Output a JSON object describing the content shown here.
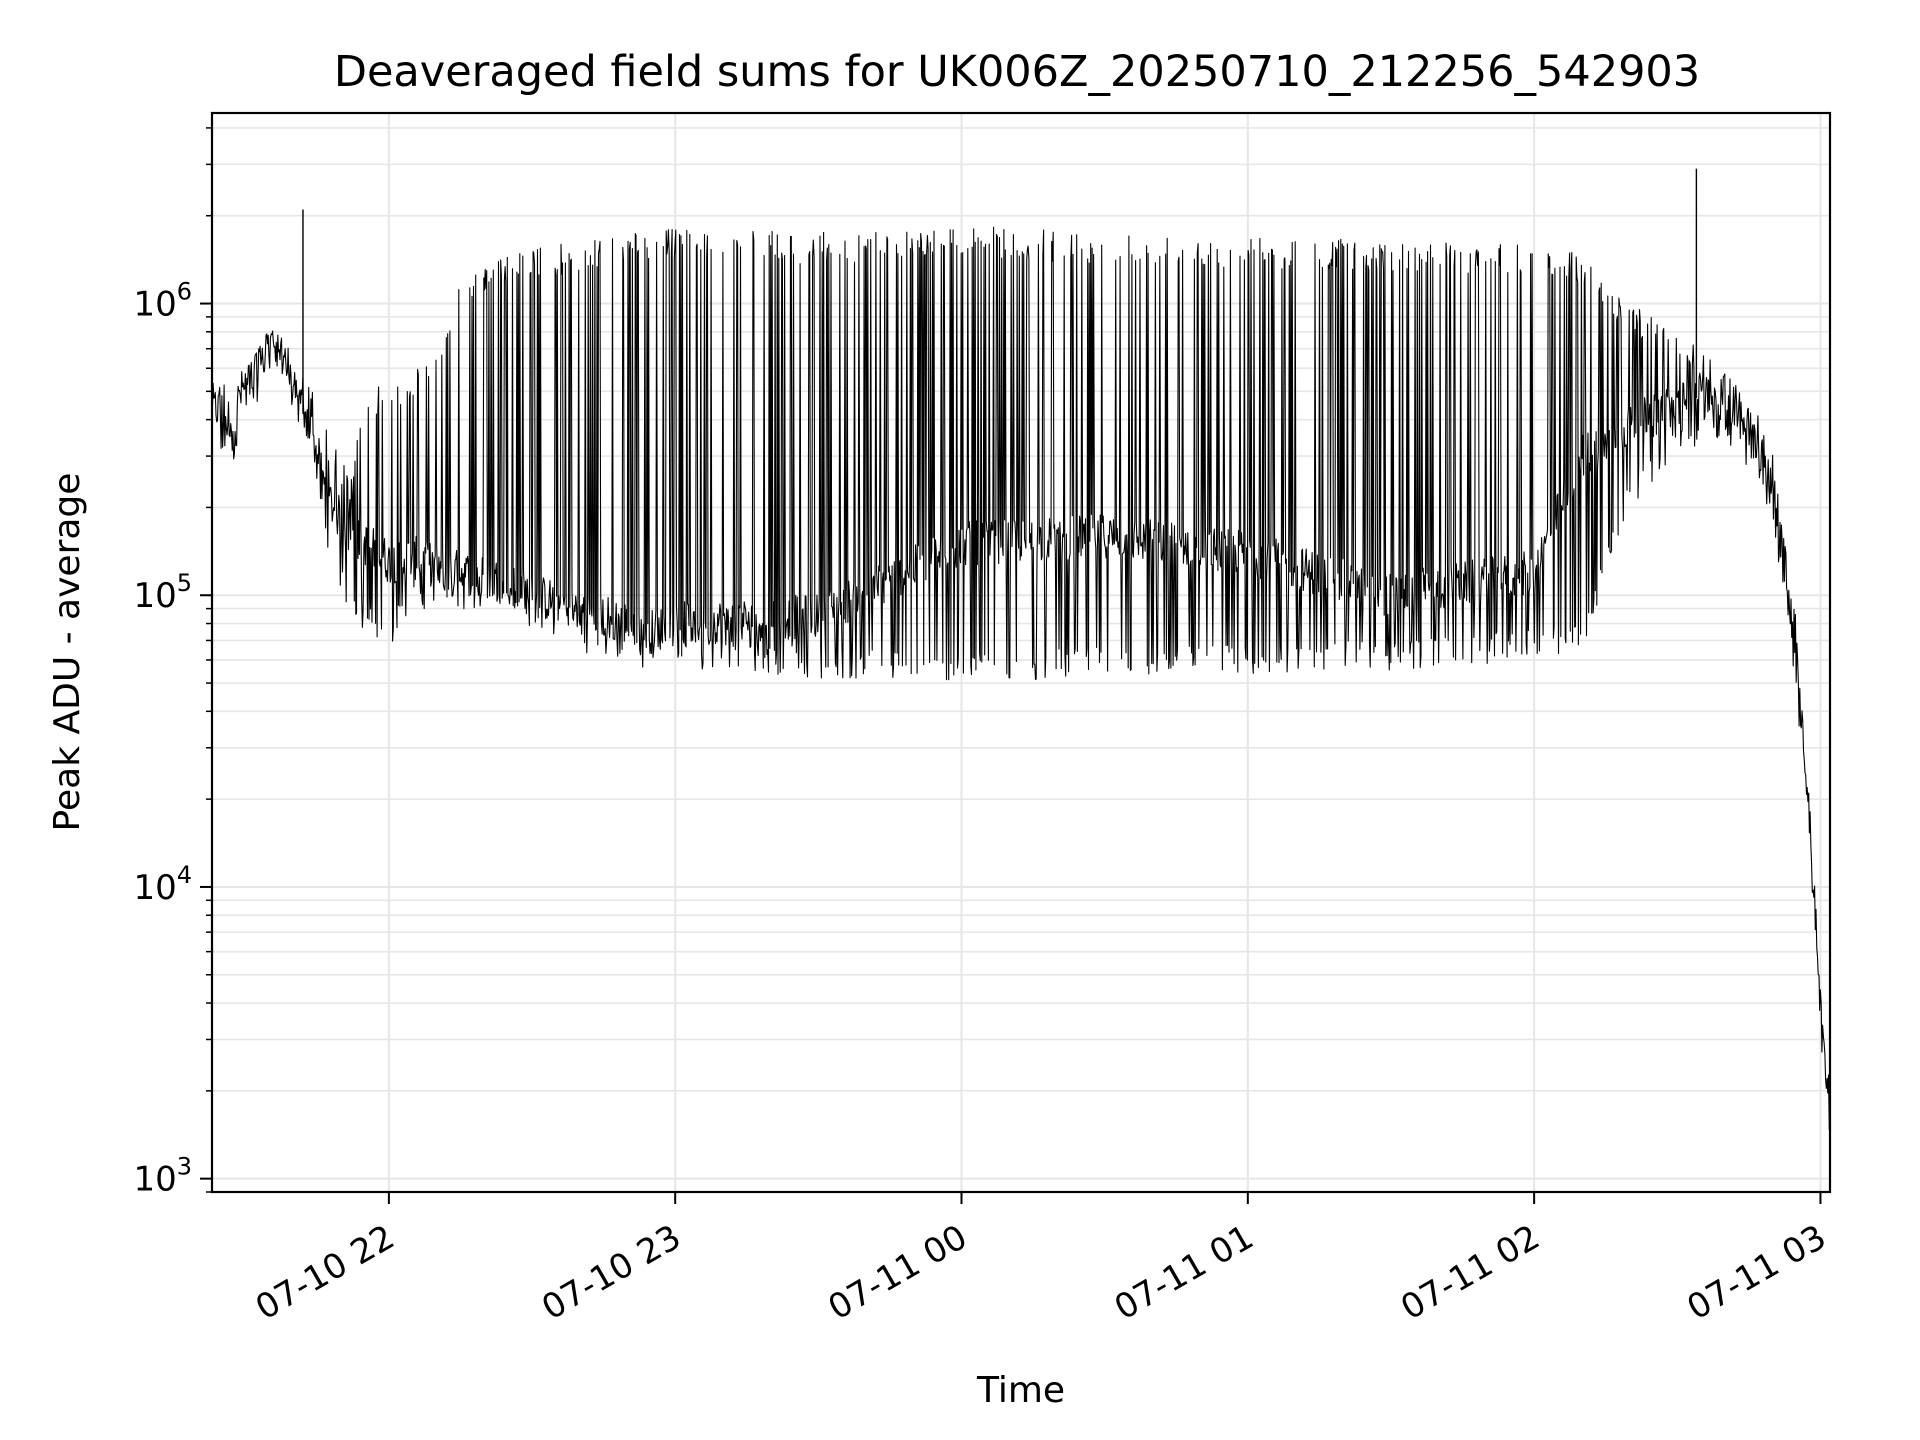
{
  "chart_data": {
    "type": "line",
    "title": "Deaveraged field sums for UK006Z_20250710_212256_542903",
    "xlabel": "Time",
    "ylabel": "Peak ADU - average",
    "yscale": "log",
    "ylim": [
      900,
      4500000
    ],
    "xlim": [
      "2025-07-10 21:22:56",
      "2025-07-11 03:02:00"
    ],
    "grid": true,
    "line_color": "#000000",
    "grid_color": "#e6e6e6",
    "x_ticks": [
      {
        "value": "2025-07-10 22:00",
        "label": "07-10 22"
      },
      {
        "value": "2025-07-10 23:00",
        "label": "07-10 23"
      },
      {
        "value": "2025-07-11 00:00",
        "label": "07-11 00"
      },
      {
        "value": "2025-07-11 01:00",
        "label": "07-11 01"
      },
      {
        "value": "2025-07-11 02:00",
        "label": "07-11 02"
      },
      {
        "value": "2025-07-11 03:00",
        "label": "07-11 03"
      }
    ],
    "y_ticks": [
      {
        "value": 1000,
        "base": "10",
        "exp": "3"
      },
      {
        "value": 10000,
        "base": "10",
        "exp": "4"
      },
      {
        "value": 100000,
        "base": "10",
        "exp": "5"
      },
      {
        "value": 1000000,
        "base": "10",
        "exp": "6"
      }
    ],
    "series": [
      {
        "x": [
          "2025-07-10 21:23",
          "2025-07-10 21:27",
          "2025-07-10 21:31",
          "2025-07-10 21:35",
          "2025-07-10 21:38",
          "2025-07-10 21:40",
          "2025-07-10 21:44",
          "2025-07-10 21:47",
          "2025-07-10 21:50",
          "2025-07-10 21:52",
          "2025-07-10 21:55",
          "2025-07-10 21:58",
          "2025-07-10 22:00",
          "2025-07-10 22:05",
          "2025-07-10 22:10",
          "2025-07-10 22:15",
          "2025-07-10 22:20",
          "2025-07-10 22:25",
          "2025-07-10 22:30",
          "2025-07-10 22:35",
          "2025-07-10 22:40",
          "2025-07-10 22:45",
          "2025-07-10 22:50",
          "2025-07-10 22:55",
          "2025-07-10 23:00",
          "2025-07-10 23:30",
          "2025-07-11 00:00",
          "2025-07-11 00:30",
          "2025-07-11 01:00",
          "2025-07-11 01:30",
          "2025-07-11 02:00",
          "2025-07-11 02:10",
          "2025-07-11 02:20",
          "2025-07-11 02:30",
          "2025-07-11 02:38",
          "2025-07-11 02:44",
          "2025-07-11 02:49",
          "2025-07-11 02:52",
          "2025-07-11 02:55",
          "2025-07-11 02:57",
          "2025-07-11 02:59",
          "2025-07-11 03:00",
          "2025-07-11 03:01",
          "2025-07-11 03:02"
        ],
        "y": [
          450000,
          400000,
          600000,
          800000,
          700000,
          500000,
          350000,
          220000,
          180000,
          160000,
          150000,
          140000,
          130000,
          135000,
          125000,
          120000,
          115000,
          110000,
          100000,
          95000,
          90000,
          85000,
          80000,
          75000,
          80000,
          85000,
          150000,
          160000,
          140000,
          100000,
          120000,
          300000,
          380000,
          450000,
          500000,
          400000,
          280000,
          150000,
          60000,
          25000,
          8000,
          4000,
          2500,
          1800
        ],
        "upper_envelope": [
          600000,
          550000,
          620000,
          820000,
          750000,
          650000,
          500000,
          380000,
          300000,
          250000,
          500000,
          520000,
          500000,
          600000,
          700000,
          1200000,
          1400000,
          1450000,
          1550000,
          1600000,
          1650000,
          1700000,
          1750000,
          1800000,
          1800000,
          1750000,
          1850000,
          1750000,
          1700000,
          1650000,
          1600000,
          1500000,
          1000000,
          800000,
          650000,
          500000,
          380000,
          200000,
          80000,
          30000,
          9000,
          4500,
          3000,
          2000
        ],
        "lower_envelope": [
          300000,
          280000,
          400000,
          600000,
          550000,
          420000,
          300000,
          150000,
          100000,
          80000,
          75000,
          70000,
          65000,
          85000,
          90000,
          90000,
          85000,
          80000,
          75000,
          70000,
          65000,
          60000,
          58000,
          55000,
          55000,
          52000,
          50000,
          52000,
          53000,
          55000,
          60000,
          62000,
          200000,
          300000,
          350000,
          280000,
          200000,
          110000,
          45000,
          18000,
          6000,
          3000,
          2000,
          1300
        ],
        "spikes": [
          {
            "x": "2025-07-10 21:42",
            "y": 2100000
          },
          {
            "x": "2025-07-11 02:34",
            "y": 2900000
          }
        ]
      }
    ]
  }
}
